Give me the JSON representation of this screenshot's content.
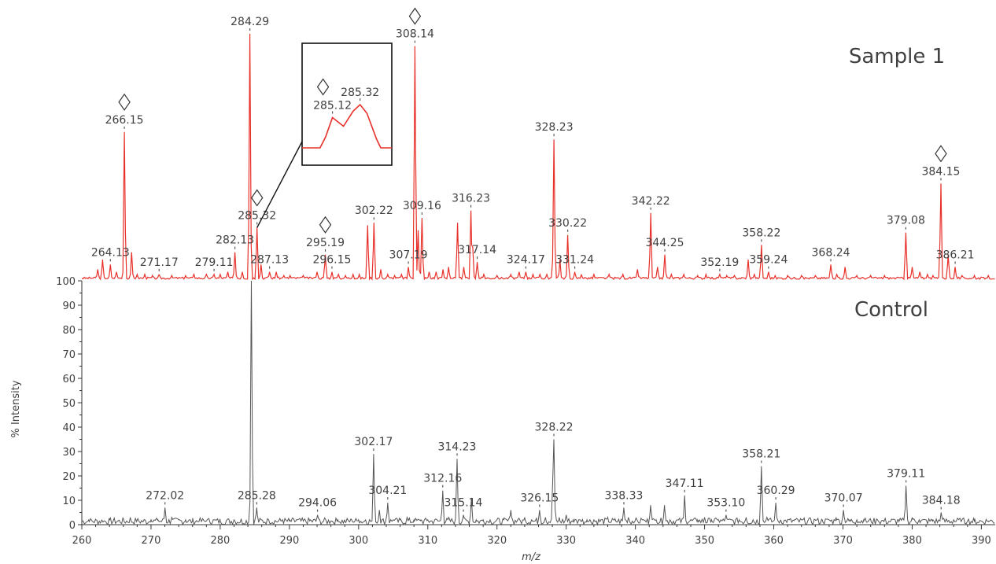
{
  "chart_data": {
    "type": "line",
    "xlabel": "m/z",
    "ylabel": "% Intensity",
    "xlim": [
      260,
      392
    ],
    "ylim": [
      0,
      100
    ],
    "x_ticks": [
      260,
      270,
      280,
      290,
      300,
      310,
      320,
      330,
      340,
      350,
      360,
      370,
      380,
      390
    ],
    "y_ticks": [
      0,
      10,
      20,
      30,
      40,
      50,
      60,
      70,
      80,
      90,
      100
    ],
    "grid": false,
    "series": [
      {
        "name": "Sample 1",
        "color": "#e8302a",
        "peaks": [
          {
            "mz": 262.3,
            "i": 4
          },
          {
            "mz": 263.0,
            "i": 8
          },
          {
            "mz": 264.13,
            "i": 6,
            "label": "264.13"
          },
          {
            "mz": 265.0,
            "i": 3
          },
          {
            "mz": 266.15,
            "i": 60,
            "label": "266.15",
            "marker": true
          },
          {
            "mz": 267.2,
            "i": 11
          },
          {
            "mz": 268.0,
            "i": 2
          },
          {
            "mz": 269.1,
            "i": 2
          },
          {
            "mz": 270.2,
            "i": 1.5
          },
          {
            "mz": 271.17,
            "i": 2,
            "label": "271.17"
          },
          {
            "mz": 273.0,
            "i": 1.5
          },
          {
            "mz": 275.0,
            "i": 1.5
          },
          {
            "mz": 276.2,
            "i": 2
          },
          {
            "mz": 278.0,
            "i": 2
          },
          {
            "mz": 279.11,
            "i": 2,
            "label": "279.11"
          },
          {
            "mz": 280.0,
            "i": 2
          },
          {
            "mz": 281.1,
            "i": 3
          },
          {
            "mz": 282.13,
            "i": 11,
            "label": "282.13"
          },
          {
            "mz": 283.2,
            "i": 3
          },
          {
            "mz": 284.29,
            "i": 100,
            "label": "284.29"
          },
          {
            "mz": 285.32,
            "i": 21,
            "label": "285.32",
            "marker": true
          },
          {
            "mz": 285.9,
            "i": 6
          },
          {
            "mz": 287.13,
            "i": 3,
            "label": "287.13"
          },
          {
            "mz": 288.1,
            "i": 3
          },
          {
            "mz": 289.2,
            "i": 1.5
          },
          {
            "mz": 290.1,
            "i": 1.5
          },
          {
            "mz": 292.0,
            "i": 1.5
          },
          {
            "mz": 294.0,
            "i": 3
          },
          {
            "mz": 295.19,
            "i": 10,
            "label": "295.19",
            "marker": true
          },
          {
            "mz": 296.15,
            "i": 3,
            "label": "296.15"
          },
          {
            "mz": 297.1,
            "i": 2
          },
          {
            "mz": 298.1,
            "i": 1.5
          },
          {
            "mz": 299.2,
            "i": 2
          },
          {
            "mz": 300.1,
            "i": 2
          },
          {
            "mz": 301.3,
            "i": 22
          },
          {
            "mz": 302.22,
            "i": 23,
            "label": "302.22"
          },
          {
            "mz": 303.2,
            "i": 4
          },
          {
            "mz": 304.2,
            "i": 2
          },
          {
            "mz": 305.2,
            "i": 1.5
          },
          {
            "mz": 306.2,
            "i": 2
          },
          {
            "mz": 307.19,
            "i": 5,
            "label": "307.19"
          },
          {
            "mz": 308.14,
            "i": 95,
            "label": "308.14",
            "marker": true
          },
          {
            "mz": 308.6,
            "i": 20
          },
          {
            "mz": 309.16,
            "i": 25,
            "label": "309.16"
          },
          {
            "mz": 310.2,
            "i": 3
          },
          {
            "mz": 311.2,
            "i": 3
          },
          {
            "mz": 312.2,
            "i": 4
          },
          {
            "mz": 313.0,
            "i": 5
          },
          {
            "mz": 314.3,
            "i": 23
          },
          {
            "mz": 315.2,
            "i": 5
          },
          {
            "mz": 316.23,
            "i": 28,
            "label": "316.23"
          },
          {
            "mz": 316.5,
            "i": 13
          },
          {
            "mz": 317.14,
            "i": 7,
            "label": "317.14"
          },
          {
            "mz": 318.1,
            "i": 2
          },
          {
            "mz": 320.0,
            "i": 1.5
          },
          {
            "mz": 322.0,
            "i": 2
          },
          {
            "mz": 323.2,
            "i": 3
          },
          {
            "mz": 324.17,
            "i": 3,
            "label": "324.17"
          },
          {
            "mz": 325.2,
            "i": 2
          },
          {
            "mz": 326.2,
            "i": 2
          },
          {
            "mz": 327.2,
            "i": 2
          },
          {
            "mz": 328.23,
            "i": 57,
            "label": "328.23"
          },
          {
            "mz": 329.1,
            "i": 8
          },
          {
            "mz": 330.22,
            "i": 18,
            "label": "330.22"
          },
          {
            "mz": 331.24,
            "i": 3,
            "label": "331.24"
          },
          {
            "mz": 332.2,
            "i": 2
          },
          {
            "mz": 334.0,
            "i": 2
          },
          {
            "mz": 336.2,
            "i": 2
          },
          {
            "mz": 338.2,
            "i": 2
          },
          {
            "mz": 340.3,
            "i": 4
          },
          {
            "mz": 342.22,
            "i": 27,
            "label": "342.22"
          },
          {
            "mz": 343.2,
            "i": 5
          },
          {
            "mz": 344.25,
            "i": 10,
            "label": "344.25"
          },
          {
            "mz": 345.2,
            "i": 2
          },
          {
            "mz": 347.0,
            "i": 2
          },
          {
            "mz": 349.0,
            "i": 1.5
          },
          {
            "mz": 350.2,
            "i": 2
          },
          {
            "mz": 352.19,
            "i": 2,
            "label": "352.19"
          },
          {
            "mz": 353.2,
            "i": 1.5
          },
          {
            "mz": 354.3,
            "i": 1.5
          },
          {
            "mz": 356.3,
            "i": 8
          },
          {
            "mz": 357.2,
            "i": 2
          },
          {
            "mz": 358.22,
            "i": 14,
            "label": "358.22"
          },
          {
            "mz": 359.24,
            "i": 3,
            "label": "359.24"
          },
          {
            "mz": 360.2,
            "i": 1.5
          },
          {
            "mz": 362.0,
            "i": 1.5
          },
          {
            "mz": 364.0,
            "i": 1.5
          },
          {
            "mz": 366.0,
            "i": 1.5
          },
          {
            "mz": 368.24,
            "i": 6,
            "label": "368.24"
          },
          {
            "mz": 369.1,
            "i": 2
          },
          {
            "mz": 370.3,
            "i": 5
          },
          {
            "mz": 372.0,
            "i": 1.5
          },
          {
            "mz": 374.0,
            "i": 1.5
          },
          {
            "mz": 376.0,
            "i": 1.5
          },
          {
            "mz": 379.08,
            "i": 19,
            "label": "379.08"
          },
          {
            "mz": 380.0,
            "i": 5
          },
          {
            "mz": 381.1,
            "i": 3
          },
          {
            "mz": 382.2,
            "i": 2
          },
          {
            "mz": 383.0,
            "i": 1.5
          },
          {
            "mz": 384.15,
            "i": 39,
            "label": "384.15",
            "marker": true
          },
          {
            "mz": 385.2,
            "i": 10
          },
          {
            "mz": 386.21,
            "i": 5,
            "label": "386.21"
          },
          {
            "mz": 387.2,
            "i": 1.5
          },
          {
            "mz": 389.0,
            "i": 1.5
          },
          {
            "mz": 391.0,
            "i": 1.5
          }
        ]
      },
      {
        "name": "Control",
        "color": "#555555",
        "peaks": [
          {
            "mz": 261.0,
            "i": 2
          },
          {
            "mz": 262.0,
            "i": 2
          },
          {
            "mz": 263.0,
            "i": 1.5
          },
          {
            "mz": 264.0,
            "i": 2
          },
          {
            "mz": 266.0,
            "i": 2.5
          },
          {
            "mz": 267.0,
            "i": 3
          },
          {
            "mz": 268.0,
            "i": 2
          },
          {
            "mz": 269.0,
            "i": 2
          },
          {
            "mz": 270.0,
            "i": 2
          },
          {
            "mz": 271.0,
            "i": 2
          },
          {
            "mz": 272.02,
            "i": 7,
            "label": "272.02"
          },
          {
            "mz": 273.0,
            "i": 3
          },
          {
            "mz": 274.0,
            "i": 2
          },
          {
            "mz": 275.0,
            "i": 2
          },
          {
            "mz": 276.0,
            "i": 1.5
          },
          {
            "mz": 277.0,
            "i": 2
          },
          {
            "mz": 278.0,
            "i": 1.5
          },
          {
            "mz": 279.0,
            "i": 2
          },
          {
            "mz": 280.0,
            "i": 1.5
          },
          {
            "mz": 281.0,
            "i": 2
          },
          {
            "mz": 282.0,
            "i": 2
          },
          {
            "mz": 283.0,
            "i": 2
          },
          {
            "mz": 284.5,
            "i": 100
          },
          {
            "mz": 285.28,
            "i": 7,
            "label": "285.28"
          },
          {
            "mz": 286.0,
            "i": 2
          },
          {
            "mz": 287.0,
            "i": 2
          },
          {
            "mz": 288.0,
            "i": 1.5
          },
          {
            "mz": 289.0,
            "i": 2
          },
          {
            "mz": 290.0,
            "i": 1.5
          },
          {
            "mz": 291.0,
            "i": 2
          },
          {
            "mz": 292.0,
            "i": 1.5
          },
          {
            "mz": 293.0,
            "i": 2
          },
          {
            "mz": 294.06,
            "i": 4,
            "label": "294.06"
          },
          {
            "mz": 295.0,
            "i": 2
          },
          {
            "mz": 296.0,
            "i": 1.5
          },
          {
            "mz": 297.0,
            "i": 2
          },
          {
            "mz": 298.0,
            "i": 1.5
          },
          {
            "mz": 299.0,
            "i": 2
          },
          {
            "mz": 300.0,
            "i": 2
          },
          {
            "mz": 301.0,
            "i": 2
          },
          {
            "mz": 302.17,
            "i": 29,
            "label": "302.17"
          },
          {
            "mz": 303.0,
            "i": 6
          },
          {
            "mz": 304.21,
            "i": 9,
            "label": "304.21"
          },
          {
            "mz": 305.0,
            "i": 2
          },
          {
            "mz": 306.0,
            "i": 2
          },
          {
            "mz": 307.0,
            "i": 3
          },
          {
            "mz": 308.0,
            "i": 2
          },
          {
            "mz": 309.0,
            "i": 2
          },
          {
            "mz": 310.0,
            "i": 2
          },
          {
            "mz": 311.0,
            "i": 2
          },
          {
            "mz": 312.16,
            "i": 14,
            "label": "312.16"
          },
          {
            "mz": 313.0,
            "i": 3
          },
          {
            "mz": 314.23,
            "i": 27,
            "label": "314.23"
          },
          {
            "mz": 315.14,
            "i": 4,
            "label": "315.14"
          },
          {
            "mz": 316.3,
            "i": 11
          },
          {
            "mz": 317.0,
            "i": 2
          },
          {
            "mz": 318.0,
            "i": 2
          },
          {
            "mz": 319.0,
            "i": 2
          },
          {
            "mz": 320.0,
            "i": 2
          },
          {
            "mz": 321.0,
            "i": 2
          },
          {
            "mz": 322.0,
            "i": 6
          },
          {
            "mz": 323.0,
            "i": 2
          },
          {
            "mz": 324.0,
            "i": 3
          },
          {
            "mz": 325.0,
            "i": 2
          },
          {
            "mz": 326.15,
            "i": 6,
            "label": "326.15"
          },
          {
            "mz": 327.0,
            "i": 3
          },
          {
            "mz": 328.1,
            "i": 23
          },
          {
            "mz": 328.22,
            "i": 35,
            "label": "328.22"
          },
          {
            "mz": 329.0,
            "i": 3
          },
          {
            "mz": 330.0,
            "i": 4
          },
          {
            "mz": 331.0,
            "i": 2
          },
          {
            "mz": 332.0,
            "i": 2
          },
          {
            "mz": 333.0,
            "i": 2
          },
          {
            "mz": 334.0,
            "i": 2
          },
          {
            "mz": 335.0,
            "i": 2
          },
          {
            "mz": 336.0,
            "i": 3
          },
          {
            "mz": 337.0,
            "i": 2
          },
          {
            "mz": 338.33,
            "i": 7,
            "label": "338.33"
          },
          {
            "mz": 339.0,
            "i": 3
          },
          {
            "mz": 340.0,
            "i": 2
          },
          {
            "mz": 341.0,
            "i": 2
          },
          {
            "mz": 342.2,
            "i": 8
          },
          {
            "mz": 343.0,
            "i": 2
          },
          {
            "mz": 344.2,
            "i": 8
          },
          {
            "mz": 345.0,
            "i": 2
          },
          {
            "mz": 346.0,
            "i": 2
          },
          {
            "mz": 347.11,
            "i": 12,
            "label": "347.11"
          },
          {
            "mz": 348.0,
            "i": 2
          },
          {
            "mz": 349.0,
            "i": 2
          },
          {
            "mz": 350.0,
            "i": 3
          },
          {
            "mz": 351.0,
            "i": 2
          },
          {
            "mz": 352.0,
            "i": 2
          },
          {
            "mz": 353.1,
            "i": 4,
            "label": "353.10"
          },
          {
            "mz": 354.0,
            "i": 2
          },
          {
            "mz": 355.0,
            "i": 2
          },
          {
            "mz": 356.0,
            "i": 3
          },
          {
            "mz": 357.0,
            "i": 2
          },
          {
            "mz": 358.21,
            "i": 24,
            "label": "358.21"
          },
          {
            "mz": 359.0,
            "i": 3
          },
          {
            "mz": 360.29,
            "i": 9,
            "label": "360.29"
          },
          {
            "mz": 361.0,
            "i": 2
          },
          {
            "mz": 362.0,
            "i": 2
          },
          {
            "mz": 363.0,
            "i": 2
          },
          {
            "mz": 364.0,
            "i": 2
          },
          {
            "mz": 365.0,
            "i": 2
          },
          {
            "mz": 366.0,
            "i": 2
          },
          {
            "mz": 367.0,
            "i": 2
          },
          {
            "mz": 368.0,
            "i": 2
          },
          {
            "mz": 369.0,
            "i": 3
          },
          {
            "mz": 370.07,
            "i": 6,
            "label": "370.07"
          },
          {
            "mz": 371.0,
            "i": 2
          },
          {
            "mz": 372.0,
            "i": 2
          },
          {
            "mz": 373.0,
            "i": 2
          },
          {
            "mz": 374.0,
            "i": 2
          },
          {
            "mz": 375.0,
            "i": 2
          },
          {
            "mz": 376.0,
            "i": 2
          },
          {
            "mz": 377.0,
            "i": 2
          },
          {
            "mz": 378.0,
            "i": 2
          },
          {
            "mz": 379.11,
            "i": 16,
            "label": "379.11"
          },
          {
            "mz": 380.0,
            "i": 3
          },
          {
            "mz": 381.0,
            "i": 2
          },
          {
            "mz": 382.0,
            "i": 2
          },
          {
            "mz": 383.0,
            "i": 2
          },
          {
            "mz": 384.18,
            "i": 5,
            "label": "384.18"
          },
          {
            "mz": 385.0,
            "i": 2
          },
          {
            "mz": 386.0,
            "i": 2
          },
          {
            "mz": 387.0,
            "i": 2
          },
          {
            "mz": 388.0,
            "i": 1.5
          },
          {
            "mz": 389.0,
            "i": 1.5
          },
          {
            "mz": 390.0,
            "i": 1.5
          },
          {
            "mz": 391.0,
            "i": 1.5
          }
        ]
      }
    ],
    "inset": {
      "xlim": [
        284.9,
        285.55
      ],
      "peaks": [
        {
          "mz": 285.12,
          "i": 70,
          "label": "285.12",
          "marker": true
        },
        {
          "mz": 285.32,
          "i": 100,
          "label": "285.32"
        }
      ]
    }
  }
}
